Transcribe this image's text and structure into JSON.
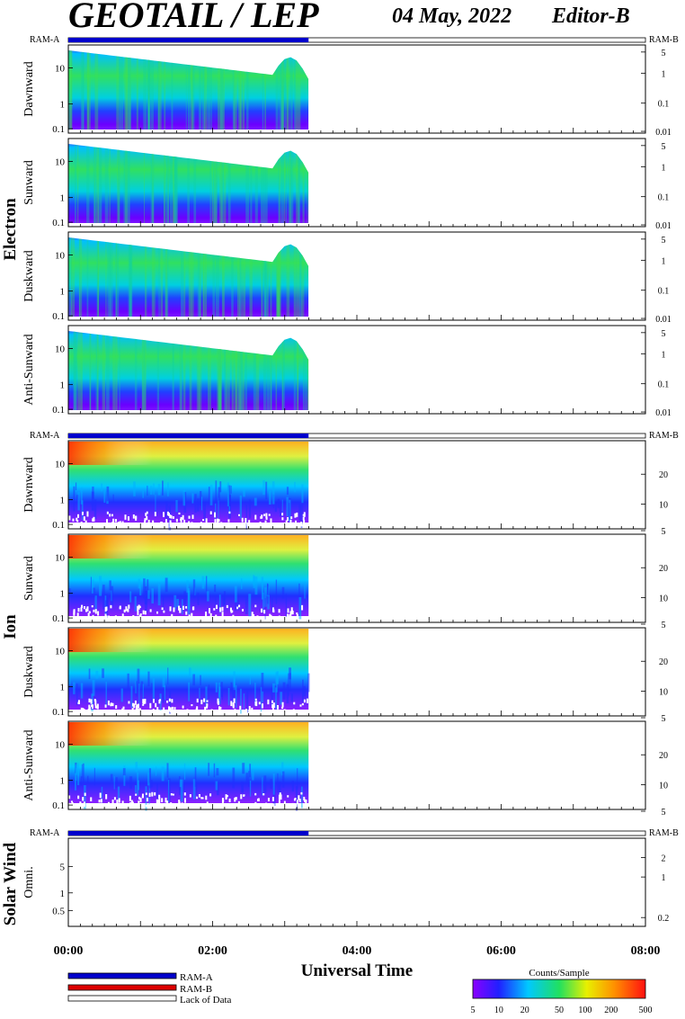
{
  "header": {
    "title": "GEOTAIL / LEP",
    "date": "04 May, 2022",
    "editor": "Editor-B"
  },
  "ram_labels": {
    "left": "RAM-A",
    "right": "RAM-B"
  },
  "groups": {
    "electron": "Electron",
    "ion": "Ion",
    "solar_wind": "Solar Wind"
  },
  "x_axis": {
    "label": "Universal Time",
    "ticks": [
      "00:00",
      "02:00",
      "04:00",
      "06:00",
      "08:00"
    ]
  },
  "legend": {
    "ram_a": "RAM-A",
    "ram_b": "RAM-B",
    "lack": "Lack of Data",
    "colors": {
      "ram_a": "#0000cc",
      "ram_b": "#dd0000"
    }
  },
  "colorbar": {
    "title": "Counts/Sample",
    "ticks": [
      "5",
      "10",
      "20",
      "50",
      "100",
      "200",
      "500"
    ]
  },
  "chart_data": {
    "type": "heatmap",
    "x_range_hours": [
      0,
      8
    ],
    "data_end_hour": 3.33,
    "ram_a_coverage_hours": [
      0,
      3.33
    ],
    "panels": [
      {
        "group": "electron",
        "label": "Dawnward",
        "yticks": [
          "10",
          "1",
          "0.1"
        ],
        "rticks": [
          "5",
          "1",
          "0.1",
          "0.01"
        ]
      },
      {
        "group": "electron",
        "label": "Sunward",
        "yticks": [
          "10",
          "1",
          "0.1"
        ],
        "rticks": [
          "5",
          "1",
          "0.1",
          "0.01"
        ]
      },
      {
        "group": "electron",
        "label": "Duskward",
        "yticks": [
          "10",
          "1",
          "0.1"
        ],
        "rticks": [
          "5",
          "1",
          "0.1",
          "0.01"
        ]
      },
      {
        "group": "electron",
        "label": "Anti-Sunward",
        "yticks": [
          "10",
          "1",
          "0.1"
        ],
        "rticks": [
          "5",
          "1",
          "0.1",
          "0.01"
        ]
      },
      {
        "group": "ion",
        "label": "Dawnward",
        "yticks": [
          "10",
          "1",
          "0.1"
        ],
        "rticks": [
          "20",
          "10",
          "5"
        ]
      },
      {
        "group": "ion",
        "label": "Sunward",
        "yticks": [
          "10",
          "1",
          "0.1"
        ],
        "rticks": [
          "20",
          "10",
          "5"
        ]
      },
      {
        "group": "ion",
        "label": "Duskward",
        "yticks": [
          "10",
          "1",
          "0.1"
        ],
        "rticks": [
          "20",
          "10",
          "5"
        ]
      },
      {
        "group": "ion",
        "label": "Anti-Sunward",
        "yticks": [
          "10",
          "1",
          "0.1"
        ],
        "rticks": [
          "20",
          "10",
          "5"
        ]
      },
      {
        "group": "solar_wind",
        "label": "Omni.",
        "yticks": [
          "5",
          "1",
          "0.5"
        ],
        "rticks": [
          "2",
          "1",
          "0.2"
        ]
      }
    ]
  }
}
